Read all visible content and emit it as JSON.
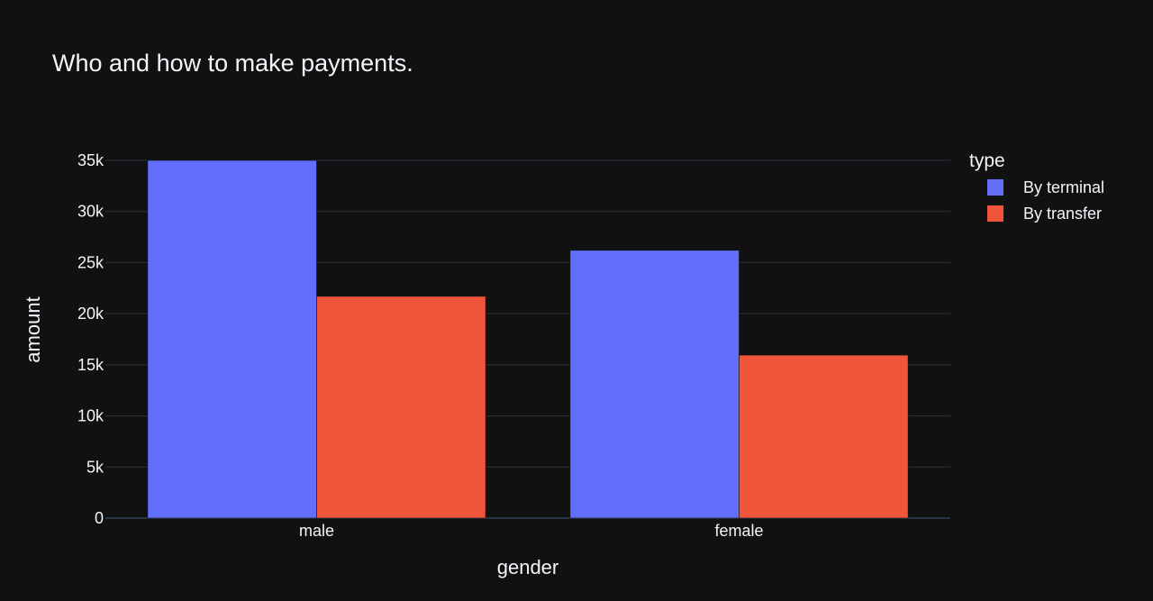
{
  "chart_data": {
    "type": "bar",
    "title": "Who and how to make payments.",
    "xlabel": "gender",
    "ylabel": "amount",
    "categories": [
      "male",
      "female"
    ],
    "series": [
      {
        "name": "By terminal",
        "color": "#636efa",
        "values": [
          35000,
          26200
        ]
      },
      {
        "name": "By transfer",
        "color": "#ef553b",
        "values": [
          21700,
          15950
        ]
      }
    ],
    "ylim": [
      0,
      35000
    ],
    "yticks": [
      0,
      5000,
      10000,
      15000,
      20000,
      25000,
      30000,
      35000
    ],
    "ytick_labels": [
      "0",
      "5k",
      "10k",
      "15k",
      "20k",
      "25k",
      "30k",
      "35k"
    ],
    "grid": true,
    "legend": {
      "title": "type",
      "position": "top-right"
    },
    "colors": {
      "background": "#111111",
      "grid": "#283442",
      "text": "#f2f5fa"
    }
  }
}
